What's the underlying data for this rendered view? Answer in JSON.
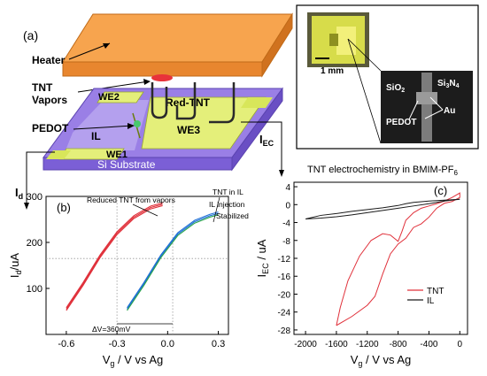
{
  "panel_a": {
    "label": "(a)",
    "heater": "Heater",
    "tnt_vapors_1": "TNT",
    "tnt_vapors_2": "Vapors",
    "pedot": "PEDOT",
    "we2": "WE2",
    "red_tnt": "Red-TNT",
    "il": "IL",
    "we3": "WE3",
    "we1": "WE1",
    "substrate": "Si Substrate",
    "id_label": "I",
    "id_sub": "d",
    "iec_label": "I",
    "iec_sub": "EC",
    "inset_scale": "1 mm",
    "inset_sio2": "SiO",
    "inset_sio2_sub": "2",
    "inset_si3n4_a": "Si",
    "inset_si3n4_sub1": "3",
    "inset_si3n4_b": "N",
    "inset_si3n4_sub2": "4",
    "inset_au": "Au",
    "inset_pedot": "PEDOT",
    "caption_main": "TNT electrochemistry in BMIM-PF",
    "caption_sub": "6"
  },
  "chart_data": [
    {
      "type": "line",
      "panel": "(b)",
      "xlabel_main": "V",
      "xlabel_sub": "g",
      "xlabel_rest": "/ V vs Ag",
      "ylabel_main": "I",
      "ylabel_sub": "d",
      "ylabel_rest": "/uA",
      "xlim": [
        -0.72,
        0.36
      ],
      "ylim": [
        0,
        300
      ],
      "xticks": [
        -0.6,
        -0.3,
        0.0,
        0.3
      ],
      "xtick_labels": [
        "-0.6",
        "-0.3",
        "0.0",
        "0.3"
      ],
      "yticks": [
        100,
        200,
        300
      ],
      "ytick_labels": [
        "100",
        "200",
        "300"
      ],
      "annotations": {
        "reduced": "Reduced TNT from vapors",
        "tnt_in_il": "TNT in IL",
        "il_injection": "IL injection",
        "stabilized": "Stabilized",
        "delta_v": "ΔV=360mV"
      },
      "series": [
        {
          "color": "#e0303a",
          "x": [
            -0.6,
            -0.5,
            -0.4,
            -0.3,
            -0.2,
            -0.1,
            -0.03
          ],
          "y": [
            55,
            110,
            170,
            220,
            255,
            276,
            283
          ]
        },
        {
          "color": "#1e6fd6",
          "x": [
            -0.24,
            -0.14,
            -0.04,
            0.06,
            0.16,
            0.25,
            0.3
          ],
          "y": [
            55,
            110,
            170,
            218,
            245,
            258,
            263
          ]
        }
      ]
    },
    {
      "type": "line",
      "panel": "(c)",
      "xlabel_main": "V",
      "xlabel_sub": "g",
      "xlabel_rest": "/ V vs Ag",
      "ylabel_main": "I",
      "ylabel_sub": "EC",
      "ylabel_rest": "/ uA",
      "xlim": [
        -2150,
        100
      ],
      "ylim": [
        -29,
        5
      ],
      "xticks": [
        -2000,
        -1600,
        -1200,
        -800,
        -400,
        0
      ],
      "xtick_labels": [
        "-2000",
        "-1600",
        "-1200",
        "-800",
        "-400",
        "0"
      ],
      "yticks": [
        4,
        0,
        -4,
        -8,
        -12,
        -16,
        -20,
        -24,
        -28
      ],
      "ytick_labels": [
        "4",
        "0",
        "-4",
        "-8",
        "-12",
        "-16",
        "-20",
        "-24",
        "-28"
      ],
      "series": [
        {
          "name": "TNT",
          "color": "#e0303a",
          "x": [
            -1600,
            -1550,
            -1450,
            -1300,
            -1150,
            -1000,
            -900,
            -850,
            -800,
            -750,
            -700,
            -600,
            -500,
            -400,
            -300,
            -200,
            -100,
            0,
            0,
            -100,
            -200,
            -300,
            -400,
            -500,
            -600,
            -700,
            -800,
            -900,
            -1000,
            -1100,
            -1200,
            -1400,
            -1600
          ],
          "y": [
            -27,
            -23,
            -17,
            -11.5,
            -8,
            -6.5,
            -6.8,
            -7.5,
            -8.2,
            -6,
            -3.5,
            -1.8,
            -0.8,
            -0.3,
            0.2,
            0.8,
            1.6,
            2.6,
            1.6,
            0.7,
            0.3,
            -0.8,
            -2.8,
            -4.3,
            -5.1,
            -7.5,
            -8.8,
            -11,
            -15.5,
            -20.5,
            -22.5,
            -25,
            -27
          ]
        },
        {
          "name": "IL",
          "color": "#1a1a1a",
          "x": [
            -2000,
            -1800,
            -1600,
            -1400,
            -1200,
            -1000,
            -800,
            -700,
            -600,
            -400,
            -200,
            0,
            -200,
            -400,
            -600,
            -800,
            -1000,
            -1200,
            -1400,
            -1600,
            -1800,
            -2000
          ],
          "y": [
            -3.2,
            -2.4,
            -2,
            -1.5,
            -1.1,
            -0.7,
            -0.2,
            0.2,
            0.5,
            0.8,
            1.0,
            1.2,
            0.8,
            0.2,
            -0.3,
            -0.8,
            -1.3,
            -1.8,
            -2.3,
            -2.7,
            -3.0,
            -3.2
          ]
        }
      ]
    }
  ]
}
